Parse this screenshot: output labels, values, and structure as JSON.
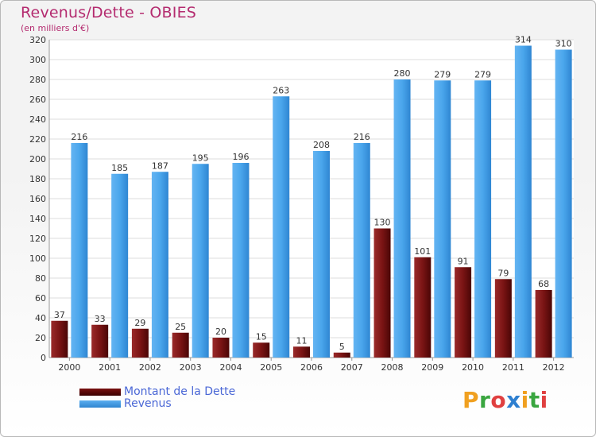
{
  "header": {
    "title": "Revenus/Dette - OBIES",
    "subtitle": "(en milliers d'€)"
  },
  "logo": {
    "text": "Proxiti",
    "letters": [
      "P",
      "r",
      "o",
      "x",
      "i",
      "t",
      "i"
    ],
    "colors": [
      "#f0a020",
      "#3aa640",
      "#e04040",
      "#2d7fd0",
      "#f0a020",
      "#3aa640",
      "#e04040"
    ]
  },
  "colors": {
    "dette": "#8b1a1a",
    "revenus": "#3c9be8",
    "title": "#b42b6f",
    "legend_text": "#4a67d6"
  },
  "chart_data": {
    "type": "bar",
    "categories": [
      "2000",
      "2001",
      "2002",
      "2003",
      "2004",
      "2005",
      "2006",
      "2007",
      "2008",
      "2009",
      "2010",
      "2011",
      "2012"
    ],
    "series": [
      {
        "name": "Montant de la Dette",
        "values": [
          37,
          33,
          29,
          25,
          20,
          15,
          11,
          5,
          130,
          101,
          91,
          79,
          68
        ]
      },
      {
        "name": "Revenus",
        "values": [
          216,
          185,
          187,
          195,
          196,
          263,
          208,
          216,
          280,
          279,
          279,
          314,
          310
        ]
      }
    ],
    "ylim": [
      0,
      320
    ],
    "yticks": [
      0,
      20,
      40,
      60,
      80,
      100,
      120,
      140,
      160,
      180,
      200,
      220,
      240,
      260,
      280,
      300,
      320
    ],
    "grid": true,
    "legend": "bottom-left"
  }
}
